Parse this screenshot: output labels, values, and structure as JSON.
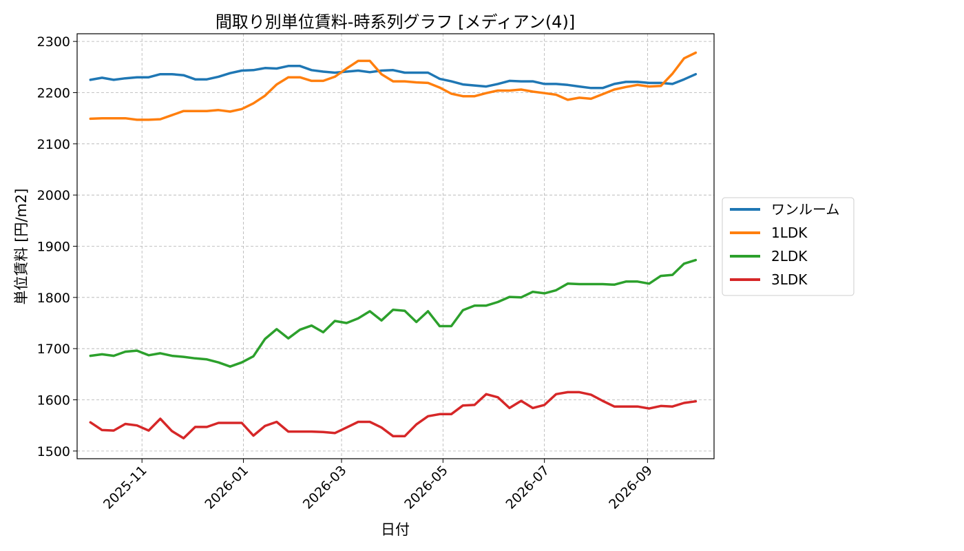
{
  "chart_data": {
    "type": "line",
    "title": "間取り別単位賃料-時系列グラフ [メディアン(4)]",
    "xlabel": "日付",
    "ylabel": "単位賃料 [円/m2]",
    "ylim": [
      1485,
      2315
    ],
    "yticks": [
      1500,
      1600,
      1700,
      1800,
      1900,
      2000,
      2100,
      2200,
      2300
    ],
    "xlim": [
      "2025-09-23",
      "2026-10-11"
    ],
    "xticks": [
      "2025-11",
      "2026-01",
      "2026-03",
      "2026-05",
      "2026-07",
      "2026-09"
    ],
    "grid": true,
    "legend": "outside-right",
    "x": [
      "2025-10-01",
      "2025-10-08",
      "2025-10-15",
      "2025-10-22",
      "2025-10-29",
      "2025-11-05",
      "2025-11-12",
      "2025-11-19",
      "2025-11-26",
      "2025-12-03",
      "2025-12-10",
      "2025-12-17",
      "2025-12-24",
      "2025-12-31",
      "2026-01-07",
      "2026-01-14",
      "2026-01-21",
      "2026-01-28",
      "2026-02-04",
      "2026-02-11",
      "2026-02-18",
      "2026-02-25",
      "2026-03-04",
      "2026-03-11",
      "2026-03-18",
      "2026-03-25",
      "2026-04-01",
      "2026-04-08",
      "2026-04-15",
      "2026-04-22",
      "2026-04-29",
      "2026-05-06",
      "2026-05-13",
      "2026-05-20",
      "2026-05-27",
      "2026-06-03",
      "2026-06-10",
      "2026-06-17",
      "2026-06-24",
      "2026-07-01",
      "2026-07-08",
      "2026-07-15",
      "2026-07-22",
      "2026-07-29",
      "2026-08-05",
      "2026-08-12",
      "2026-08-19",
      "2026-08-26",
      "2026-09-02",
      "2026-09-09",
      "2026-09-16",
      "2026-09-23",
      "2026-09-30"
    ],
    "series": [
      {
        "name": "ワンルーム",
        "color": "#1f77b4",
        "values": [
          2225,
          2229,
          2225,
          2228,
          2230,
          2230,
          2236,
          2236,
          2234,
          2226,
          2226,
          2231,
          2238,
          2243,
          2244,
          2248,
          2247,
          2252,
          2252,
          2244,
          2241,
          2239,
          2241,
          2243,
          2240,
          2243,
          2244,
          2239,
          2239,
          2239,
          2227,
          2222,
          2216,
          2214,
          2212,
          2217,
          2223,
          2222,
          2222,
          2217,
          2217,
          2215,
          2212,
          2209,
          2209,
          2217,
          2221,
          2221,
          2219,
          2219,
          2217,
          2226,
          2236
        ]
      },
      {
        "name": "1LDK",
        "color": "#ff7f0e",
        "values": [
          2149,
          2150,
          2150,
          2150,
          2147,
          2147,
          2148,
          2156,
          2164,
          2164,
          2164,
          2166,
          2163,
          2168,
          2179,
          2194,
          2216,
          2230,
          2230,
          2223,
          2223,
          2231,
          2247,
          2262,
          2262,
          2236,
          2222,
          2222,
          2220,
          2219,
          2210,
          2198,
          2193,
          2193,
          2199,
          2204,
          2204,
          2206,
          2202,
          2199,
          2196,
          2186,
          2190,
          2188,
          2197,
          2206,
          2211,
          2215,
          2212,
          2213,
          2237,
          2267,
          2278
        ]
      },
      {
        "name": "2LDK",
        "color": "#2ca02c",
        "values": [
          1686,
          1689,
          1686,
          1694,
          1696,
          1687,
          1691,
          1686,
          1684,
          1681,
          1679,
          1673,
          1665,
          1673,
          1685,
          1719,
          1738,
          1720,
          1737,
          1745,
          1732,
          1754,
          1750,
          1759,
          1773,
          1755,
          1776,
          1774,
          1752,
          1773,
          1744,
          1744,
          1775,
          1784,
          1784,
          1791,
          1801,
          1800,
          1811,
          1808,
          1814,
          1827,
          1826,
          1826,
          1826,
          1825,
          1831,
          1831,
          1827,
          1842,
          1844,
          1866,
          1873
        ]
      },
      {
        "name": "3LDK",
        "color": "#d62728",
        "values": [
          1556,
          1541,
          1540,
          1553,
          1550,
          1540,
          1563,
          1539,
          1525,
          1547,
          1547,
          1555,
          1555,
          1555,
          1530,
          1549,
          1557,
          1538,
          1538,
          1538,
          1537,
          1535,
          1546,
          1557,
          1557,
          1546,
          1529,
          1529,
          1552,
          1568,
          1572,
          1572,
          1589,
          1590,
          1611,
          1605,
          1584,
          1598,
          1584,
          1590,
          1611,
          1615,
          1615,
          1610,
          1598,
          1587,
          1587,
          1587,
          1583,
          1588,
          1587,
          1594,
          1597
        ]
      }
    ]
  }
}
